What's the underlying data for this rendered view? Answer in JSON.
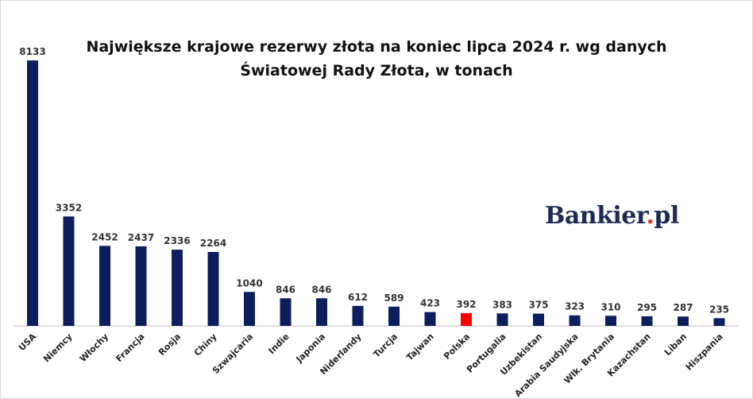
{
  "logo": {
    "name": "Bankier",
    "dot": ".",
    "suffix": "pl"
  },
  "chart_data": {
    "type": "bar",
    "title": "Największe krajowe rezerwy złota na koniec lipca 2024 r. wg danych Światowej Rady Złota, w tonach",
    "title_lines": [
      "Największe krajowe rezerwy złota na koniec lipca 2024 r. wg danych",
      "Światowej Rady Złota, w tonach"
    ],
    "xlabel": "",
    "ylabel": "",
    "categories": [
      "USA",
      "Niemcy",
      "Włochy",
      "Francja",
      "Rosja",
      "Chiny",
      "Szwajcaria",
      "Indie",
      "Japonia",
      "Niderlandy",
      "Turcja",
      "Tajwan",
      "Polska",
      "Portugalia",
      "Uzbekistan",
      "Arabia Saudyjska",
      "Wlk. Brytania",
      "Kazachstan",
      "Liban",
      "Hiszpania"
    ],
    "values": [
      8133,
      3352,
      2452,
      2437,
      2336,
      2264,
      1040,
      846,
      846,
      612,
      589,
      423,
      392,
      383,
      375,
      323,
      310,
      295,
      287,
      235
    ],
    "colors": {
      "default": "#0c1f5c",
      "highlight": "#ff0000"
    },
    "highlight_category": "Polska",
    "ylim": [
      0,
      8133
    ],
    "grid": false,
    "legend": "none",
    "data_labels": true
  }
}
